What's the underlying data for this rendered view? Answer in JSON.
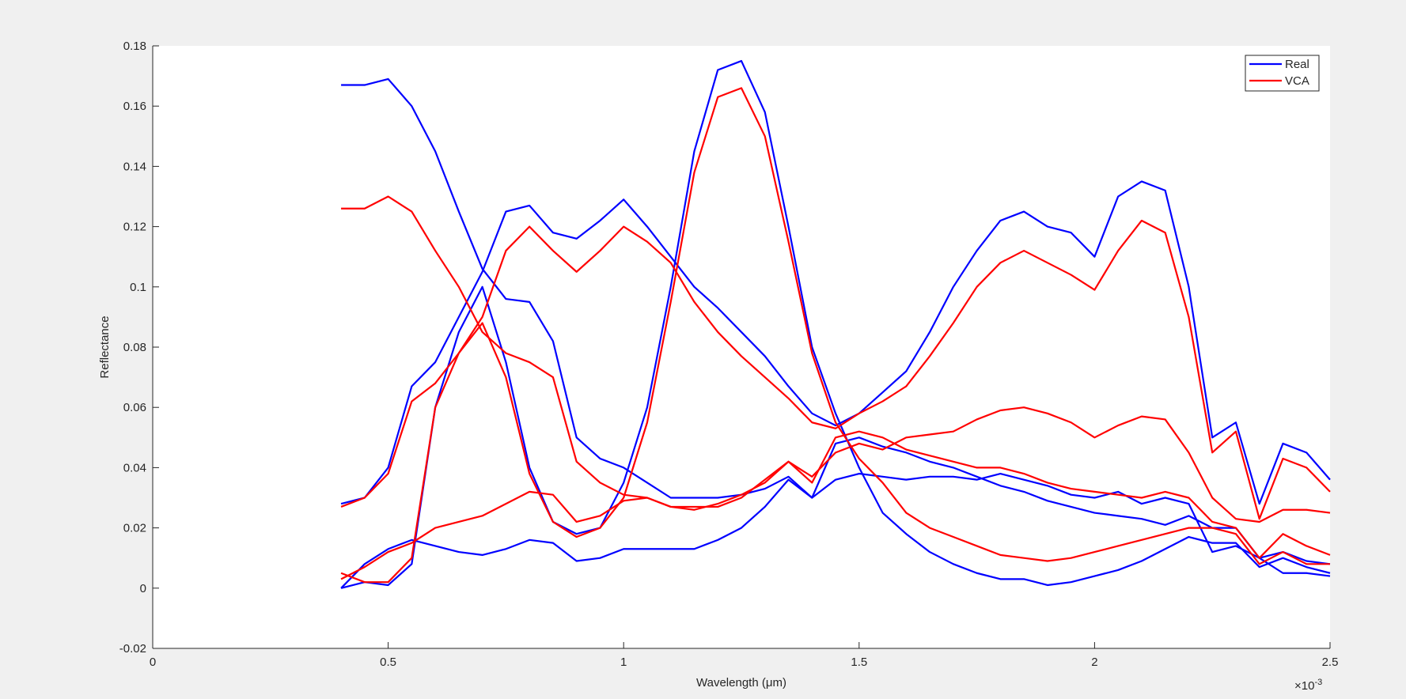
{
  "chart_data": {
    "type": "line",
    "xlabel": "Wavelength (μm)",
    "ylabel": "Reflectance",
    "x_exponent": {
      "base": "×10",
      "power": "-3"
    },
    "xlim": [
      0,
      2.5
    ],
    "xticks": [
      0,
      0.5,
      1,
      1.5,
      2,
      2.5
    ],
    "ylim": [
      -0.02,
      0.18
    ],
    "yticks": [
      -0.02,
      0,
      0.02,
      0.04,
      0.06,
      0.08,
      0.1,
      0.12,
      0.14,
      0.16,
      0.18
    ],
    "legend": "top-right",
    "x": [
      0.4,
      0.45,
      0.5,
      0.55,
      0.6,
      0.65,
      0.7,
      0.75,
      0.8,
      0.85,
      0.9,
      0.95,
      1.0,
      1.05,
      1.1,
      1.15,
      1.2,
      1.25,
      1.3,
      1.35,
      1.4,
      1.45,
      1.5,
      1.55,
      1.6,
      1.65,
      1.7,
      1.75,
      1.8,
      1.85,
      1.9,
      1.95,
      2.0,
      2.05,
      2.1,
      2.15,
      2.2,
      2.25,
      2.3,
      2.35,
      2.4,
      2.45,
      2.5
    ],
    "series": [
      {
        "name": "Real",
        "color": "#0000ff",
        "lines": [
          [
            0.167,
            0.167,
            0.169,
            0.16,
            0.145,
            0.125,
            0.106,
            0.096,
            0.095,
            0.082,
            0.05,
            0.043,
            0.04,
            0.035,
            0.03,
            0.03,
            0.03,
            0.031,
            0.033,
            0.037,
            0.03,
            0.036,
            0.038,
            0.037,
            0.036,
            0.037,
            0.037,
            0.036,
            0.038,
            0.036,
            0.034,
            0.031,
            0.03,
            0.032,
            0.028,
            0.03,
            0.028,
            0.012,
            0.014,
            0.01,
            0.005,
            0.005,
            0.004
          ],
          [
            0.0,
            0.002,
            0.001,
            0.008,
            0.06,
            0.085,
            0.1,
            0.075,
            0.04,
            0.022,
            0.018,
            0.02,
            0.035,
            0.06,
            0.1,
            0.145,
            0.172,
            0.175,
            0.158,
            0.12,
            0.08,
            0.058,
            0.04,
            0.025,
            0.018,
            0.012,
            0.008,
            0.005,
            0.003,
            0.003,
            0.001,
            0.002,
            0.004,
            0.006,
            0.009,
            0.013,
            0.017,
            0.015,
            0.015,
            0.007,
            0.01,
            0.007,
            0.005
          ],
          [
            0.028,
            0.03,
            0.04,
            0.067,
            0.075,
            0.09,
            0.105,
            0.125,
            0.127,
            0.118,
            0.116,
            0.122,
            0.129,
            0.12,
            0.11,
            0.1,
            0.093,
            0.085,
            0.077,
            0.067,
            0.058,
            0.054,
            0.058,
            0.065,
            0.072,
            0.085,
            0.1,
            0.112,
            0.122,
            0.125,
            0.12,
            0.118,
            0.11,
            0.13,
            0.135,
            0.132,
            0.1,
            0.05,
            0.055,
            0.028,
            0.048,
            0.045,
            0.036
          ],
          [
            0.0,
            0.008,
            0.013,
            0.016,
            0.014,
            0.012,
            0.011,
            0.013,
            0.016,
            0.015,
            0.009,
            0.01,
            0.013,
            0.013,
            0.013,
            0.013,
            0.016,
            0.02,
            0.027,
            0.036,
            0.03,
            0.048,
            0.05,
            0.047,
            0.045,
            0.042,
            0.04,
            0.037,
            0.034,
            0.032,
            0.029,
            0.027,
            0.025,
            0.024,
            0.023,
            0.021,
            0.024,
            0.02,
            0.02,
            0.01,
            0.012,
            0.009,
            0.008
          ]
        ]
      },
      {
        "name": "VCA",
        "color": "#ff0000",
        "lines": [
          [
            0.126,
            0.126,
            0.13,
            0.125,
            0.112,
            0.1,
            0.085,
            0.078,
            0.075,
            0.07,
            0.042,
            0.035,
            0.031,
            0.03,
            0.027,
            0.026,
            0.028,
            0.031,
            0.035,
            0.042,
            0.037,
            0.045,
            0.048,
            0.046,
            0.05,
            0.051,
            0.052,
            0.056,
            0.059,
            0.06,
            0.058,
            0.055,
            0.05,
            0.054,
            0.057,
            0.056,
            0.045,
            0.03,
            0.023,
            0.022,
            0.026,
            0.026,
            0.025
          ],
          [
            0.005,
            0.002,
            0.002,
            0.01,
            0.06,
            0.078,
            0.088,
            0.07,
            0.038,
            0.022,
            0.017,
            0.02,
            0.03,
            0.055,
            0.095,
            0.138,
            0.163,
            0.166,
            0.15,
            0.115,
            0.078,
            0.055,
            0.043,
            0.035,
            0.025,
            0.02,
            0.017,
            0.014,
            0.011,
            0.01,
            0.009,
            0.01,
            0.012,
            0.014,
            0.016,
            0.018,
            0.02,
            0.02,
            0.018,
            0.008,
            0.012,
            0.008,
            0.008
          ],
          [
            0.027,
            0.03,
            0.038,
            0.062,
            0.068,
            0.078,
            0.09,
            0.112,
            0.12,
            0.112,
            0.105,
            0.112,
            0.12,
            0.115,
            0.108,
            0.095,
            0.085,
            0.077,
            0.07,
            0.063,
            0.055,
            0.053,
            0.058,
            0.062,
            0.067,
            0.077,
            0.088,
            0.1,
            0.108,
            0.112,
            0.108,
            0.104,
            0.099,
            0.112,
            0.122,
            0.118,
            0.09,
            0.045,
            0.052,
            0.023,
            0.043,
            0.04,
            0.032
          ],
          [
            0.003,
            0.007,
            0.012,
            0.015,
            0.02,
            0.022,
            0.024,
            0.028,
            0.032,
            0.031,
            0.022,
            0.024,
            0.029,
            0.03,
            0.027,
            0.027,
            0.027,
            0.03,
            0.036,
            0.042,
            0.035,
            0.05,
            0.052,
            0.05,
            0.046,
            0.044,
            0.042,
            0.04,
            0.04,
            0.038,
            0.035,
            0.033,
            0.032,
            0.031,
            0.03,
            0.032,
            0.03,
            0.022,
            0.02,
            0.01,
            0.018,
            0.014,
            0.011
          ]
        ]
      }
    ]
  }
}
